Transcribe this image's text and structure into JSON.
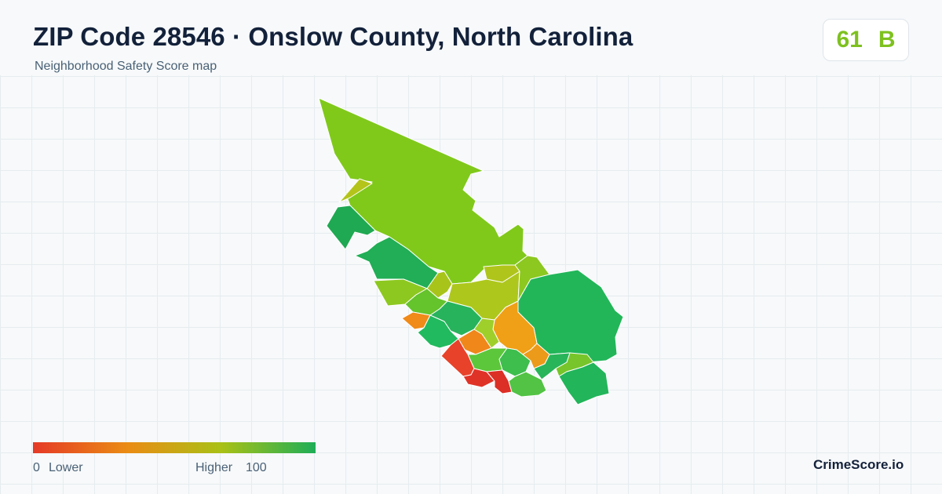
{
  "header": {
    "title": "ZIP Code 28546 · Onslow County, North Carolina",
    "subtitle": "Neighborhood Safety Score map"
  },
  "score": {
    "value": "61",
    "grade": "B",
    "color": "#7ec11f"
  },
  "legend": {
    "min_label": "0",
    "min_text": "Lower",
    "max_text": "Higher",
    "max_label": "100",
    "gradient_colors": [
      "#e53a26",
      "#ea8c14",
      "#a9c116",
      "#1fae57"
    ]
  },
  "brand": "CrimeScore.io",
  "map": {
    "regions": [
      {
        "name": "north-tract",
        "color": "#80c91b"
      },
      {
        "name": "west-small-tract",
        "color": "#b4c41a"
      },
      {
        "name": "west-tract",
        "color": "#1fa952"
      },
      {
        "name": "west-central-tract",
        "color": "#21ae56"
      },
      {
        "name": "central-west-tract",
        "color": "#8dc820"
      },
      {
        "name": "central-tract-a",
        "color": "#a8c41b"
      },
      {
        "name": "central-tract-b",
        "color": "#65c32b"
      },
      {
        "name": "central-tract-c",
        "color": "#aec71d"
      },
      {
        "name": "central-tract-d",
        "color": "#b0c51b"
      },
      {
        "name": "north-east-small-tract",
        "color": "#8cc820"
      },
      {
        "name": "east-tract",
        "color": "#22b659"
      },
      {
        "name": "south-west-orange-tract",
        "color": "#f08a18"
      },
      {
        "name": "south-green-tract-a",
        "color": "#27b35c"
      },
      {
        "name": "south-green-tract-b",
        "color": "#21ba5e"
      },
      {
        "name": "south-orange-tract-a",
        "color": "#f0871a"
      },
      {
        "name": "central-orange-tract",
        "color": "#f0a016"
      },
      {
        "name": "south-light-green-tract",
        "color": "#5cc73a"
      },
      {
        "name": "south-green-tract-c",
        "color": "#3dbe4d"
      },
      {
        "name": "south-orange-tract-b",
        "color": "#ec9a19"
      },
      {
        "name": "south-red-tract-a",
        "color": "#e8422a"
      },
      {
        "name": "south-red-tract-b",
        "color": "#e03328"
      },
      {
        "name": "south-red-tract-c",
        "color": "#dc2f26"
      },
      {
        "name": "south-green-tract-d",
        "color": "#52c345"
      },
      {
        "name": "south-east-tract-a",
        "color": "#28b55a"
      },
      {
        "name": "south-east-tract-b",
        "color": "#77c52a"
      },
      {
        "name": "south-east-green-tract",
        "color": "#22b55a"
      },
      {
        "name": "central-small-tract",
        "color": "#9fcf2b"
      }
    ]
  }
}
